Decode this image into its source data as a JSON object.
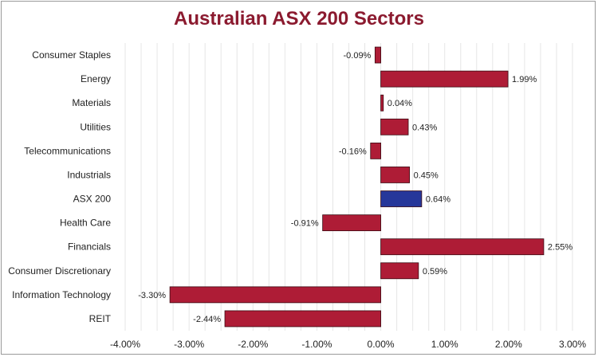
{
  "chart_data": {
    "type": "bar",
    "orientation": "horizontal",
    "title": "Australian ASX 200 Sectors",
    "xlabel": "",
    "ylabel": "",
    "xlim": [
      -0.04,
      0.03
    ],
    "x_ticks": [
      -0.04,
      -0.03,
      -0.02,
      -0.01,
      0,
      0.01,
      0.02,
      0.03
    ],
    "x_tick_labels": [
      "-4.00%",
      "-3.00%",
      "-2.00%",
      "-1.00%",
      "0.00%",
      "1.00%",
      "2.00%",
      "3.00%"
    ],
    "grid": "vertical",
    "categories": [
      "Consumer Staples",
      "Energy",
      "Materials",
      "Utilities",
      "Telecommunications",
      "Industrials",
      "ASX 200",
      "Health Care",
      "Financials",
      "Consumer Discretionary",
      "Information Technology",
      "REIT"
    ],
    "values": [
      -0.0009,
      0.0199,
      0.0004,
      0.0043,
      -0.0016,
      0.0045,
      0.0064,
      -0.0091,
      0.0255,
      0.0059,
      -0.033,
      -0.0244
    ],
    "value_labels": [
      "-0.09%",
      "1.99%",
      "0.04%",
      "0.43%",
      "-0.16%",
      "0.45%",
      "0.64%",
      "-0.91%",
      "2.55%",
      "0.59%",
      "-3.30%",
      "-2.44%"
    ],
    "colors": {
      "default_bar": "#ae1c36",
      "highlight_bar": "#26379a",
      "highlight_category": "ASX 200",
      "title": "#8b1a2f",
      "grid": "#e6e6e6"
    }
  }
}
